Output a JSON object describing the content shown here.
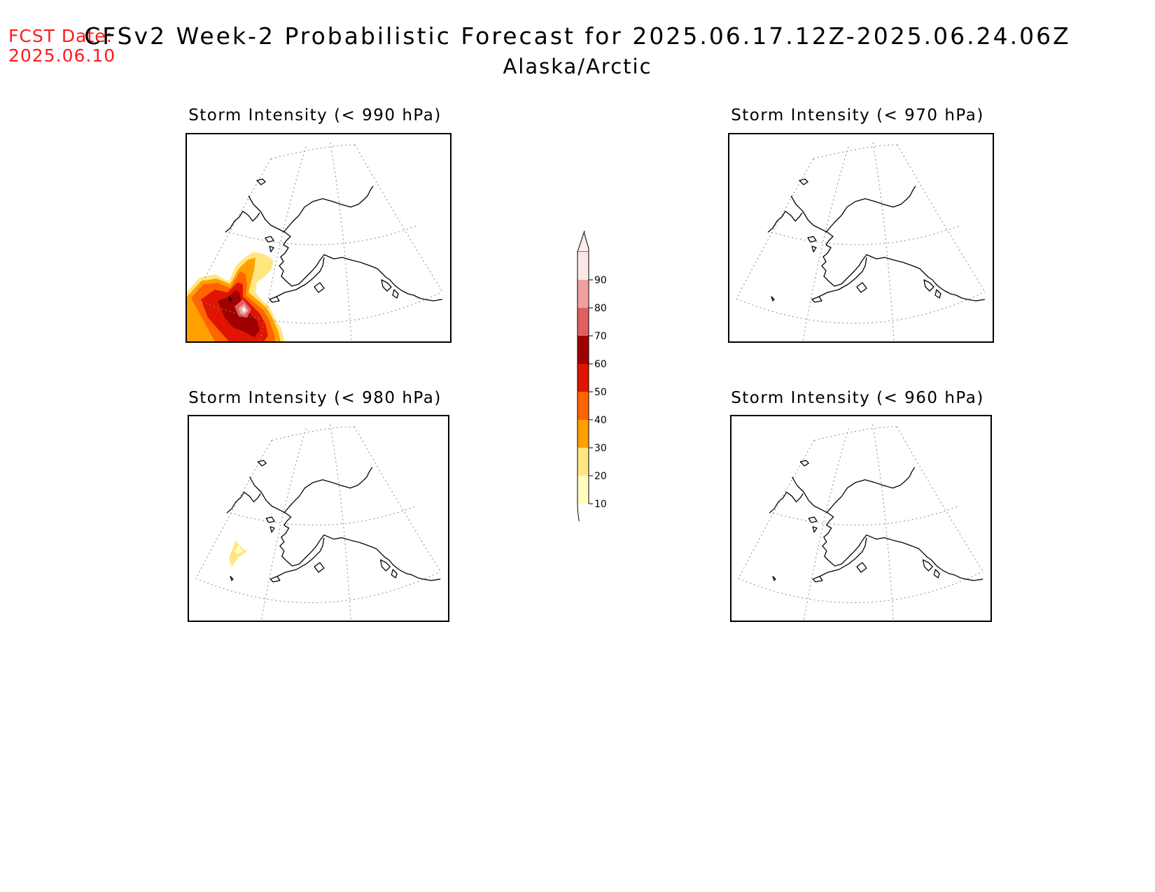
{
  "forecast_date": {
    "label": "FCST Date:",
    "value": "2025.06.10"
  },
  "title": "CFSv2 Week-2 Probabilistic Forecast for 2025.06.17.12Z-2025.06.24.06Z",
  "region": "Alaska/Arctic",
  "panels": [
    {
      "title": "Storm Intensity (< 990 hPa)",
      "field": "p990"
    },
    {
      "title": "Storm Intensity (< 970 hPa)",
      "field": "none"
    },
    {
      "title": "Storm Intensity (< 980 hPa)",
      "field": "p980"
    },
    {
      "title": "Storm Intensity (< 960 hPa)",
      "field": "none"
    }
  ],
  "colorbar": {
    "labels": [
      "10",
      "20",
      "30",
      "40",
      "50",
      "60",
      "70",
      "80",
      "90"
    ],
    "colors": [
      "#ffffc0",
      "#ffe680",
      "#ffa000",
      "#ff6400",
      "#e01400",
      "#a00000",
      "#e06060",
      "#f0a0a0",
      "#fde6e6"
    ]
  }
}
